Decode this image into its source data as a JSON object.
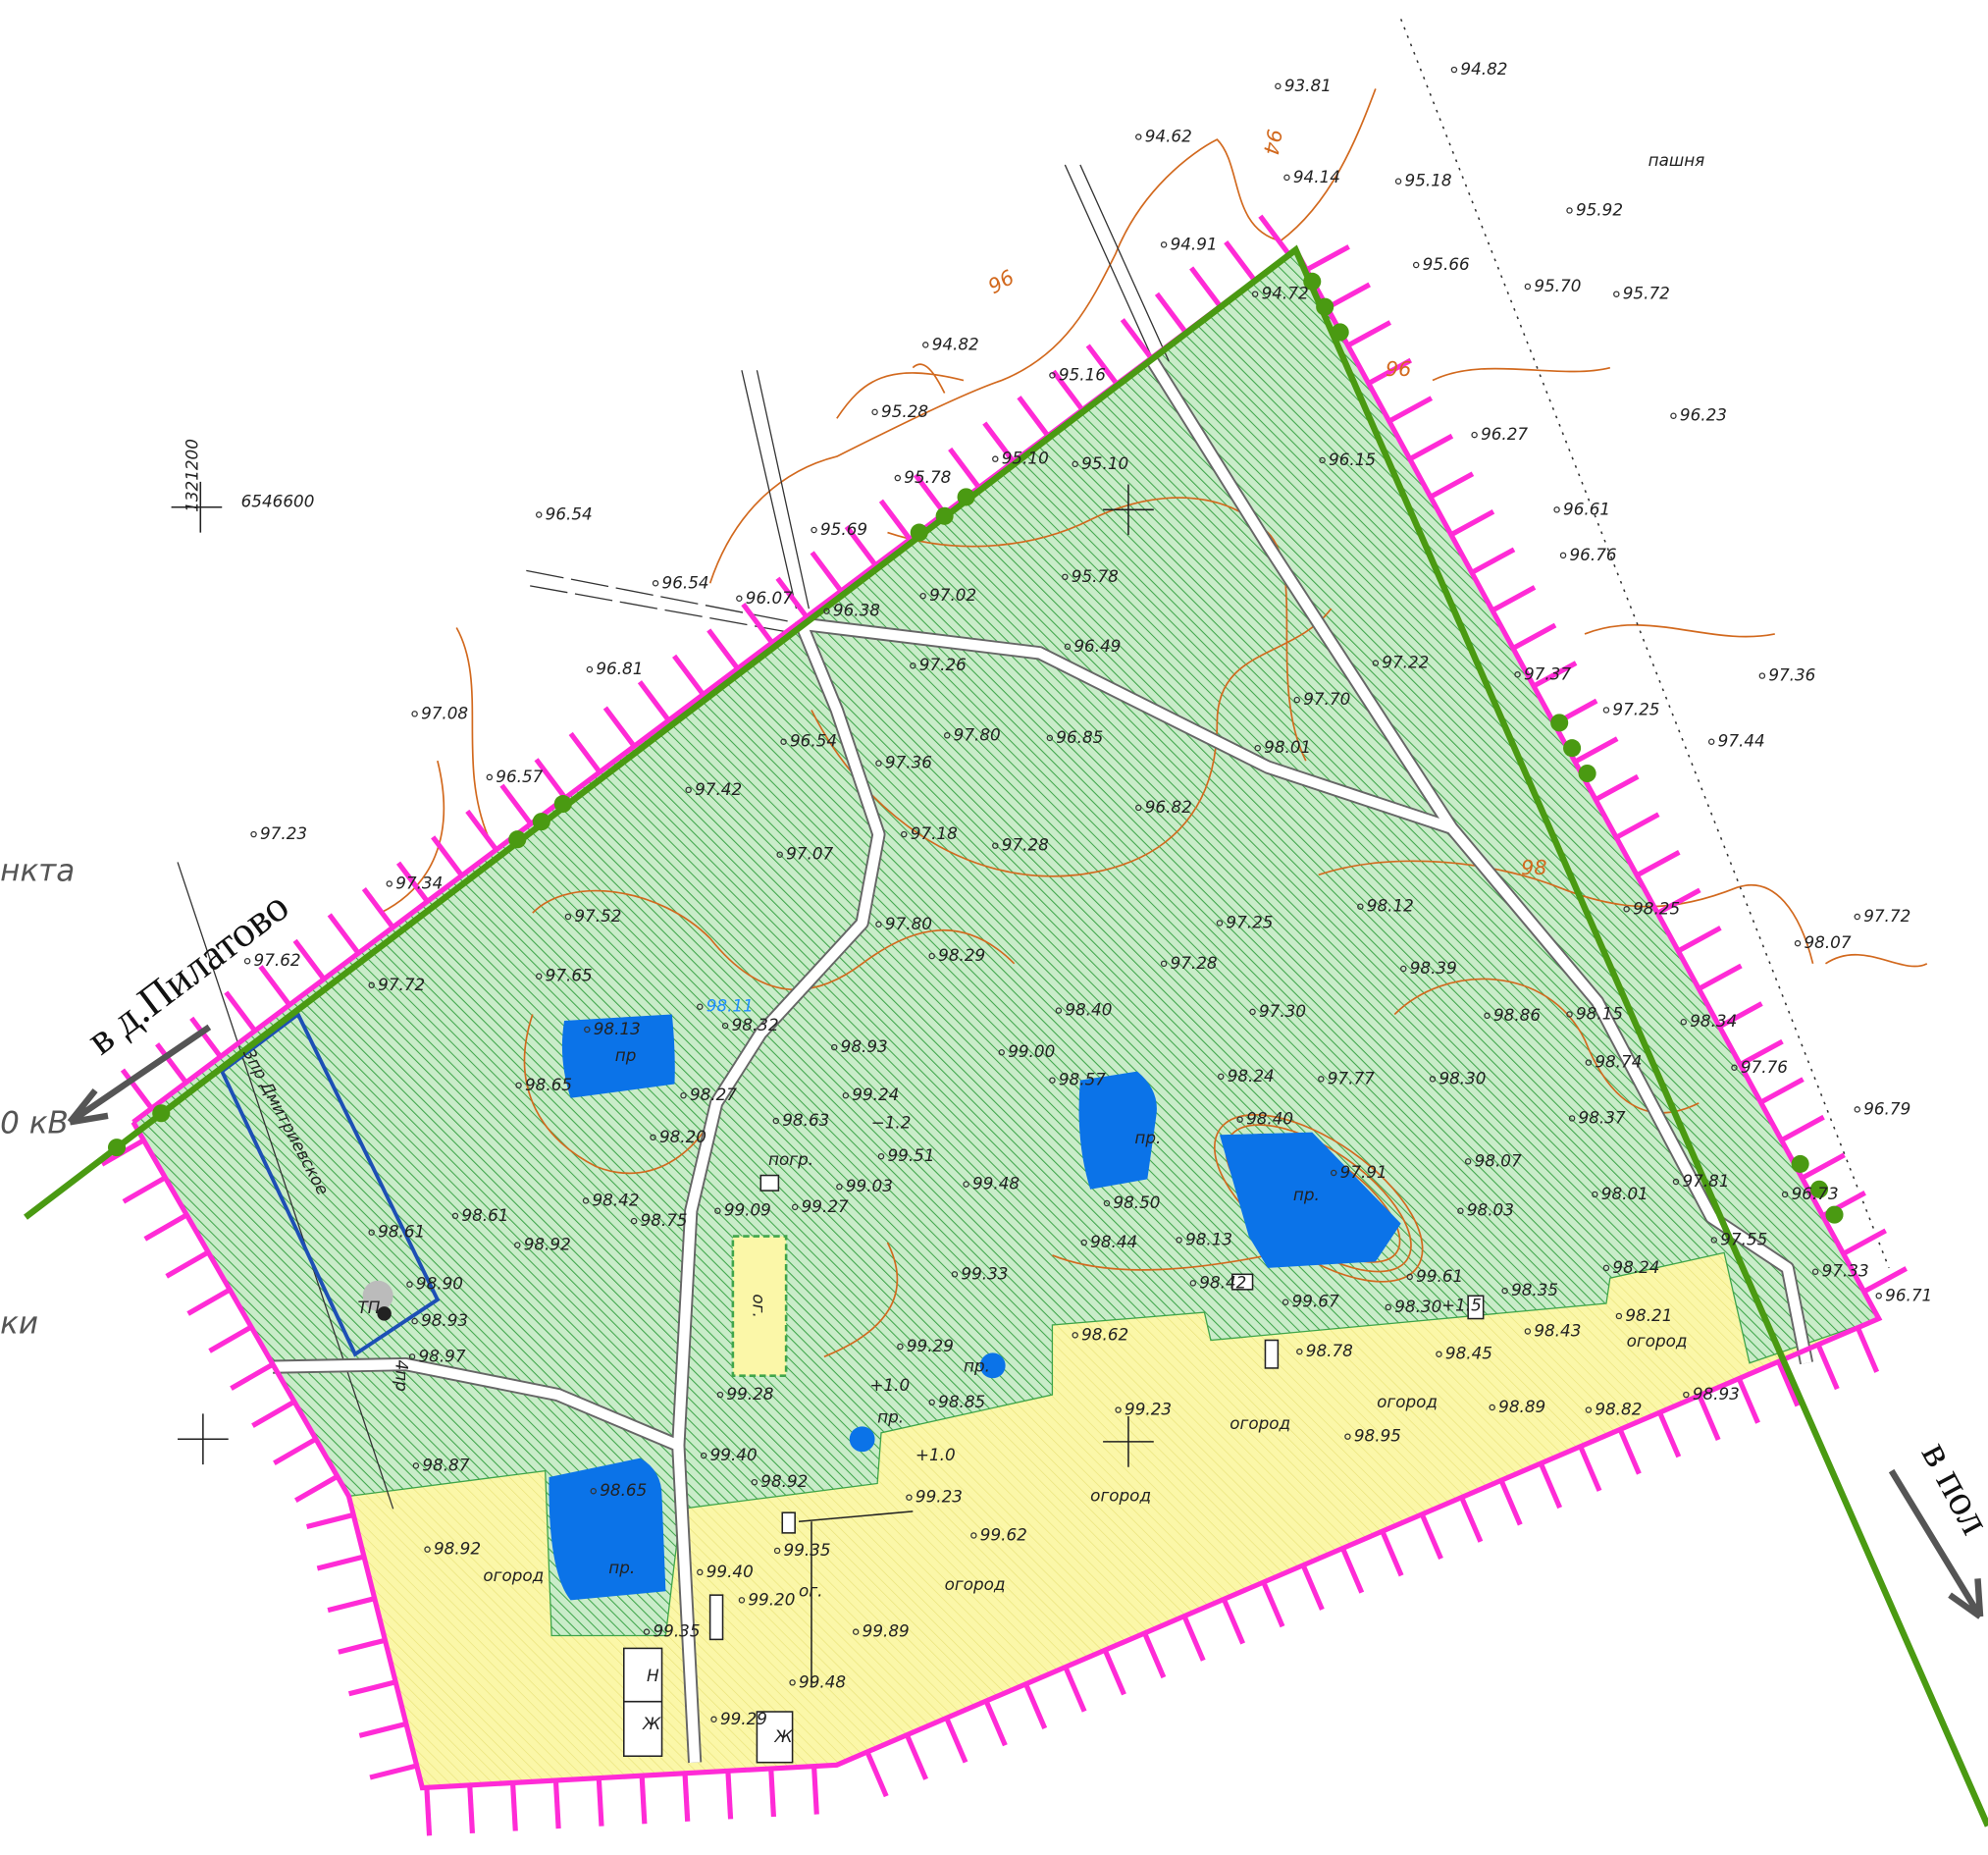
{
  "labels": [
    "94.82",
    "93.81",
    "94.62",
    "94.14",
    "95.18",
    "пашня",
    "95.92",
    "94.91",
    "95.66",
    "95.70",
    "95.72",
    "94.72",
    "94.82",
    "95.16",
    "95.28",
    "96.23",
    "96.27",
    "96.15",
    "95.10",
    "95.10",
    "95.78",
    "96.54",
    "95.69",
    "96.61",
    "96.76",
    "95.78",
    "96.54",
    "96.07",
    "96.38",
    "97.02",
    "96.49",
    "97.26",
    "97.22",
    "97.37",
    "96.81",
    "97.36",
    "97.70",
    "97.25",
    "97.08",
    "96.54",
    "97.80",
    "96.85",
    "98.01",
    "97.44",
    "97.36",
    "96.57",
    "97.42",
    "96.82",
    "97.23",
    "97.18",
    "97.28",
    "97.07",
    "98.12",
    "97.34",
    "97.52",
    "98.25",
    "97.72",
    "97.80",
    "97.25",
    "98.07",
    "97.62",
    "98.29",
    "97.28",
    "98.39",
    "97.65",
    "97.72",
    "98.40",
    "97.30",
    "98.86",
    "98.15",
    "98.13",
    "98.11",
    "98.32",
    "98.34",
    "98.93",
    "99.00",
    "98.74",
    "97.76",
    "98.57",
    "98.24",
    "97.77",
    "98.30",
    "98.65",
    "99.24",
    "98.27",
    "98.63",
    "−1.2",
    "98.40",
    "98.37",
    "96.79",
    "98.20",
    "99.51",
    "97.91",
    "98.07",
    "погр.",
    "99.03",
    "99.48",
    "97.81",
    "98.01",
    "98.42",
    "99.09",
    "99.27",
    "98.50",
    "98.03",
    "96.73",
    "98.61",
    "98.75",
    "98.61",
    "98.92",
    "98.44",
    "98.13",
    "97.55",
    "98.24",
    "97.33",
    "98.90",
    "99.33",
    "98.42",
    "99.61",
    "98.35",
    "ТП",
    "98.93",
    "99.67",
    "98.30",
    "+1.5",
    "98.21",
    "огород",
    "98.43",
    "98.62",
    "98.78",
    "98.45",
    "99.29",
    "пр.",
    "98.97",
    "+1.0",
    "99.28",
    "98.85",
    "огород",
    "98.89",
    "98.82",
    "98.95",
    "99.23",
    "огород",
    "пр.",
    "+1.0",
    "99.40",
    "98.92",
    "98.87",
    "98.65",
    "огород",
    "99.23",
    "98.92",
    "огород",
    "пр.",
    "99.35",
    "99.62",
    "99.40",
    "огород",
    "99.20",
    "ог.",
    "99.89",
    "99.35",
    "Н",
    "99.48",
    "Ж",
    "99.29",
    "Ж",
    "пр",
    "пр.",
    "пр.",
    "96.71",
    "98.93",
    "6546600"
  ],
  "rotated_labels": [
    "ог.",
    "3пр Дмитриевское",
    "4пр",
    "1321200",
    "96",
    "94",
    "96",
    "98"
  ],
  "directions": {
    "left": "в д.Пилатово",
    "right": "в пол"
  },
  "edge_fragments": [
    "нкта",
    "0  кВ",
    "ки"
  ]
}
